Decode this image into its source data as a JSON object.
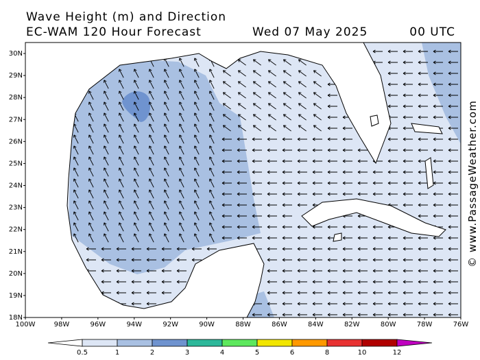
{
  "header": {
    "title": "Wave Height (m) and Direction",
    "model": "EC-WAM 120 Hour Forecast",
    "date": "Wed 07 May 2025",
    "time": "00 UTC"
  },
  "map": {
    "lat_labels": [
      "30N",
      "29N",
      "28N",
      "27N",
      "26N",
      "25N",
      "24N",
      "23N",
      "22N",
      "21N",
      "20N",
      "19N",
      "18N"
    ],
    "lon_labels": [
      "100W",
      "98W",
      "96W",
      "94W",
      "92W",
      "90W",
      "88W",
      "86W",
      "84W",
      "82W",
      "80W",
      "78W",
      "76W"
    ]
  },
  "colorbar": {
    "labels": [
      "0.5",
      "1",
      "2",
      "3",
      "4",
      "5",
      "6",
      "8",
      "10",
      "12"
    ],
    "colors": [
      "#dde6f5",
      "#a9c0e2",
      "#6f93cf",
      "#2db89a",
      "#5de85d",
      "#f2e600",
      "#ff9900",
      "#e83232",
      "#b00000"
    ]
  },
  "watermark": "© www.PassageWeather.com"
}
